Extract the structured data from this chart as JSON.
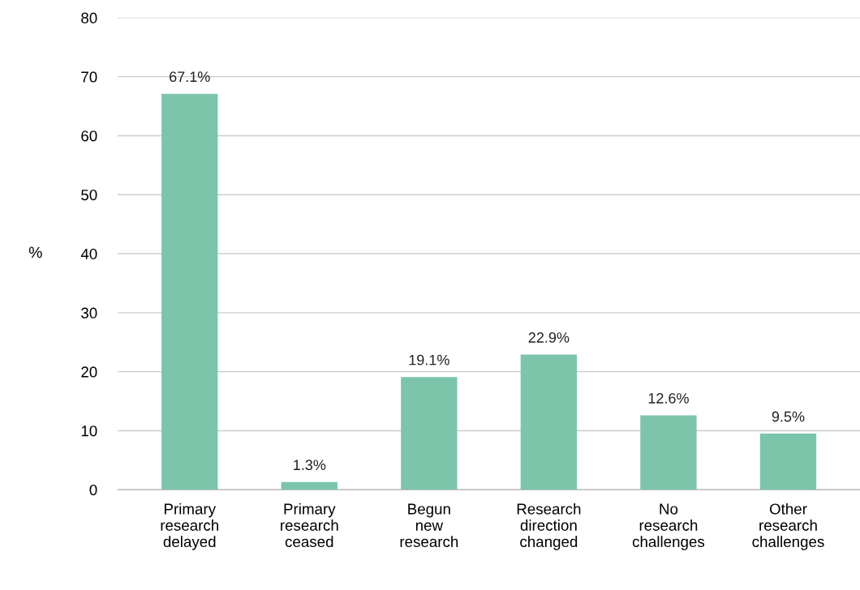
{
  "chart_data": {
    "type": "bar",
    "ylabel": "%",
    "categories": [
      "Primary\nresearch\ndelayed",
      "Primary\nresearch\nceased",
      "Begun\nnew\nresearch",
      "Research\ndirection\nchanged",
      "No\nresearch\nchallenges",
      "Other\nresearch\nchallenges"
    ],
    "values": [
      67.1,
      1.3,
      19.1,
      22.9,
      12.6,
      9.5
    ],
    "value_labels": [
      "67.1%",
      "1.3%",
      "19.1%",
      "22.9%",
      "12.6%",
      "9.5%"
    ],
    "color": "#7cc5ab",
    "ylim": [
      0,
      80
    ],
    "yticks": [
      0,
      10,
      20,
      30,
      40,
      50,
      60,
      70,
      80
    ],
    "grid": "y",
    "legend": false
  }
}
